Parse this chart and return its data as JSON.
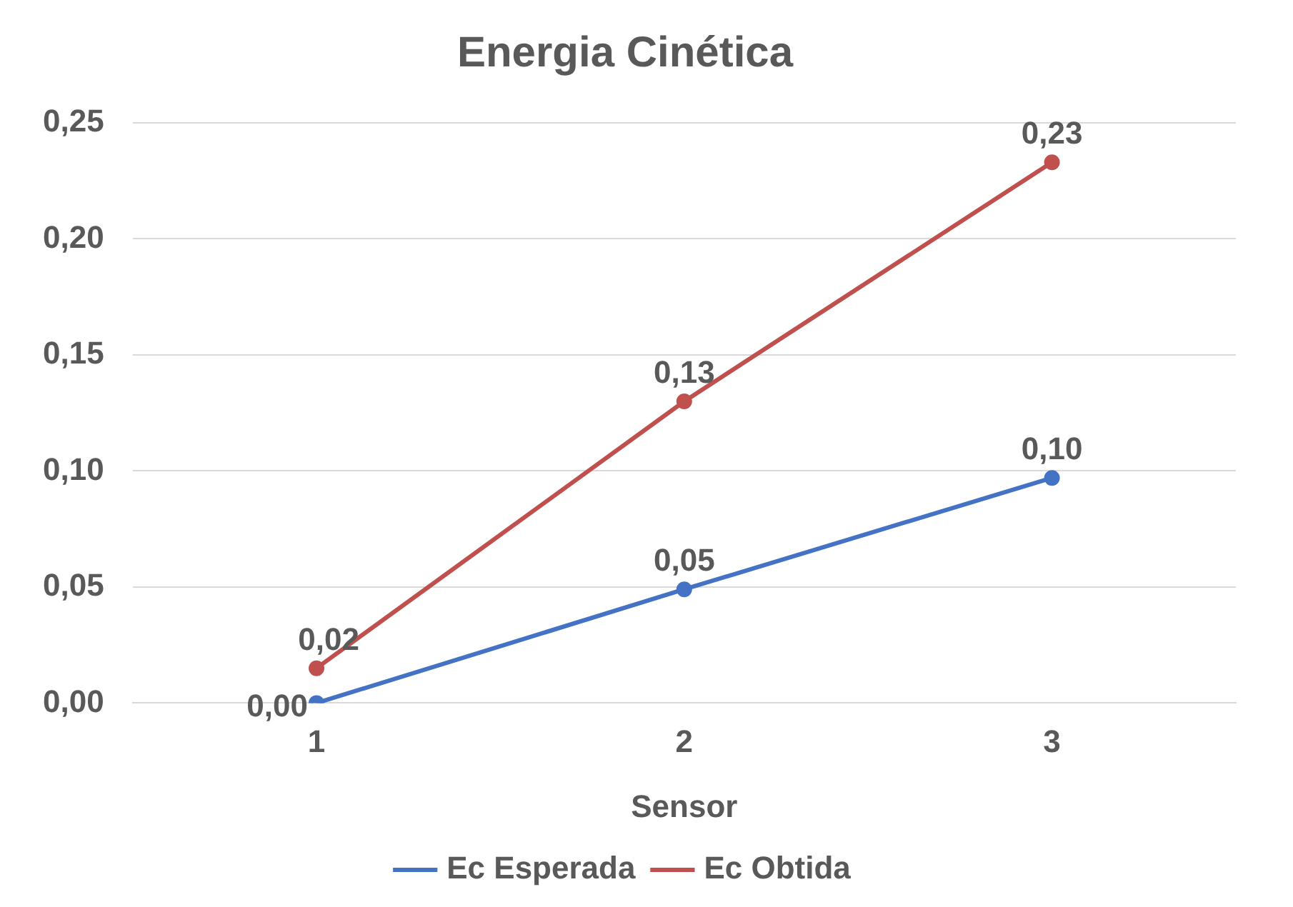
{
  "chart_data": {
    "type": "line",
    "title": "Energia Cinética",
    "xlabel": "Sensor",
    "categories": [
      "1",
      "2",
      "3"
    ],
    "series": [
      {
        "name": "Ec Esperada",
        "color": "#4472c4",
        "values": [
          0,
          0.049,
          0.097
        ],
        "value_labels": [
          "0,00",
          "0,05",
          "0,10"
        ]
      },
      {
        "name": "Ec Obtida",
        "color": "#c0504d",
        "values": [
          0.015,
          0.13,
          0.233
        ],
        "value_labels": [
          "0,02",
          "0,13",
          "0,23"
        ]
      }
    ],
    "ylim": [
      0,
      0.25
    ],
    "yticks": [
      {
        "value": 0,
        "label": "0,00"
      },
      {
        "value": 0.05,
        "label": "0,05"
      },
      {
        "value": 0.1,
        "label": "0,10"
      },
      {
        "value": 0.15,
        "label": "0,15"
      },
      {
        "value": 0.2,
        "label": "0,20"
      },
      {
        "value": 0.25,
        "label": "0,25"
      }
    ],
    "grid": "y",
    "legend": "bottom",
    "marker": "circle",
    "line_style": "solid"
  }
}
